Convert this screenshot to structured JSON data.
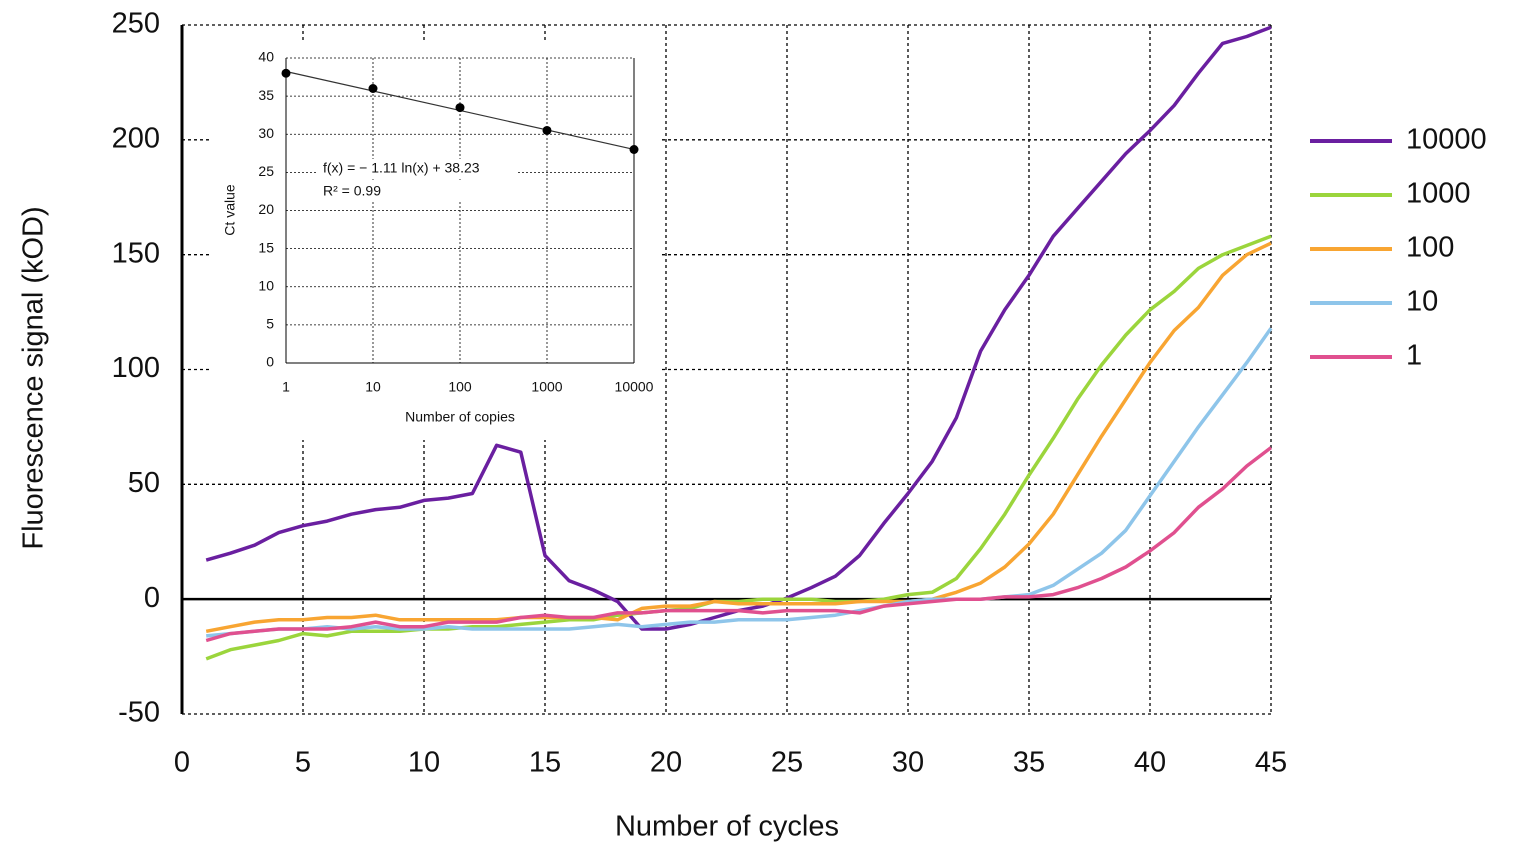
{
  "chart_data": [
    {
      "type": "line",
      "xlabel": "Number of cycles",
      "ylabel": "Fluorescence signal (kOD)",
      "x": [
        1,
        2,
        3,
        4,
        5,
        6,
        7,
        8,
        9,
        10,
        11,
        12,
        13,
        14,
        15,
        16,
        17,
        18,
        19,
        20,
        21,
        22,
        23,
        24,
        25,
        26,
        27,
        28,
        29,
        30,
        31,
        32,
        33,
        34,
        35,
        36,
        37,
        38,
        39,
        40,
        41,
        42,
        43,
        44,
        45
      ],
      "series": [
        {
          "name": "10000",
          "color": "#6a1fa0",
          "values": [
            17,
            20,
            23.5,
            29,
            32,
            34,
            37,
            39,
            40,
            43,
            44,
            46,
            67,
            64,
            19,
            8,
            4,
            -1,
            -13,
            -13,
            -11,
            -8,
            -5,
            -3,
            0.5,
            5,
            10,
            19,
            33,
            46,
            60,
            79,
            108,
            126,
            141,
            158,
            170,
            182,
            194,
            204,
            215,
            229,
            242,
            245,
            249
          ]
        },
        {
          "name": "1000",
          "color": "#9bd53c",
          "values": [
            -26,
            -22,
            -20,
            -18,
            -15,
            -16,
            -14,
            -14,
            -14,
            -13,
            -13,
            -12,
            -12,
            -11,
            -10,
            -9,
            -9,
            -7,
            -6,
            -5,
            -4,
            -1,
            -1,
            0,
            0,
            0,
            -1,
            -1,
            0,
            2,
            3,
            9,
            22,
            37,
            54,
            70,
            87,
            102,
            115,
            126,
            134,
            144,
            150,
            154,
            158
          ]
        },
        {
          "name": "100",
          "color": "#f8a532",
          "values": [
            -14,
            -12,
            -10,
            -9,
            -9,
            -8,
            -8,
            -7,
            -9,
            -9,
            -9,
            -9,
            -9,
            -8,
            -8,
            -8,
            -8,
            -9,
            -4,
            -3,
            -3,
            -1,
            -2,
            -2,
            -2,
            -2,
            -2,
            -1,
            -1,
            -1,
            0,
            3,
            7,
            14,
            24,
            37,
            54,
            71,
            87,
            103,
            117,
            127,
            141,
            150,
            155
          ]
        },
        {
          "name": "10",
          "color": "#8ec5ea",
          "values": [
            -16,
            -15,
            -14,
            -13,
            -13,
            -12,
            -13,
            -12,
            -13,
            -13,
            -12,
            -13,
            -13,
            -13,
            -13,
            -13,
            -12,
            -11,
            -12,
            -11,
            -10,
            -10,
            -9,
            -9,
            -9,
            -8,
            -7,
            -5,
            -3,
            -1,
            0,
            0,
            0,
            1,
            2,
            6,
            13,
            20,
            30,
            45,
            60,
            75,
            89,
            103,
            118
          ]
        },
        {
          "name": "1",
          "color": "#e0508f",
          "values": [
            -18,
            -15,
            -14,
            -13,
            -13,
            -13,
            -12,
            -10,
            -12,
            -12,
            -10,
            -10,
            -10,
            -8,
            -7,
            -8,
            -8,
            -6,
            -6,
            -5,
            -5,
            -5,
            -5,
            -6,
            -5,
            -5,
            -5,
            -6,
            -3,
            -2,
            -1,
            0,
            0,
            1,
            1,
            2,
            5,
            9,
            14,
            21,
            29,
            40,
            48,
            58,
            66
          ]
        }
      ],
      "xlim": [
        0,
        45
      ],
      "xticks": [
        0,
        5,
        10,
        15,
        20,
        25,
        30,
        35,
        40,
        45
      ],
      "ylim": [
        -50,
        250
      ],
      "yticks": [
        -50,
        0,
        50,
        100,
        150,
        200,
        250
      ],
      "grid": true,
      "legend": "right"
    },
    {
      "type": "scatter",
      "xlabel": "Number of copies",
      "ylabel": "Ct value",
      "x": [
        1,
        10,
        100,
        1000,
        10000
      ],
      "values": [
        38,
        36,
        33.5,
        30.5,
        28
      ],
      "color": "#000000",
      "log_x": true,
      "xlim": [
        1,
        10000
      ],
      "xticks": [
        1,
        10,
        100,
        1000,
        10000
      ],
      "ylim": [
        0,
        40
      ],
      "yticks": [
        0,
        5,
        10,
        15,
        20,
        25,
        30,
        35,
        40
      ],
      "grid": true,
      "trendline": {
        "x": [
          1,
          10000
        ],
        "y": [
          38.23,
          28.01
        ]
      },
      "annotations": [
        "f(x) = − 1.11 ln(x) + 38.23",
        "R² = 0.99"
      ]
    }
  ]
}
